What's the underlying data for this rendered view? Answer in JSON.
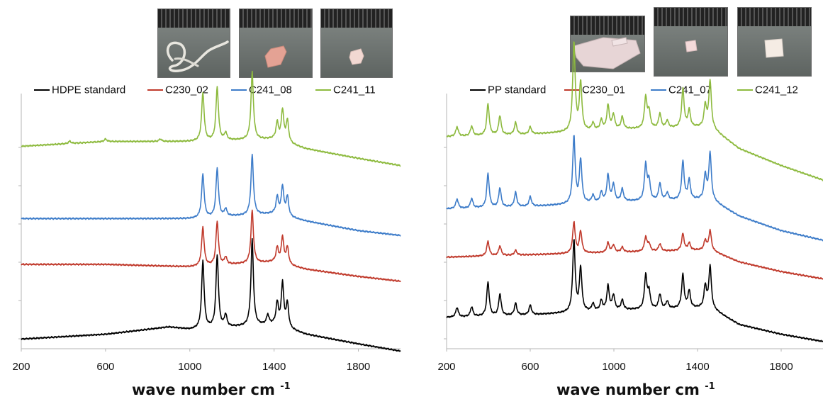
{
  "chart_data": [
    {
      "type": "line",
      "panel": "left",
      "xlabel": "wave number cm",
      "xlabel_sup": "-1",
      "xlim": [
        200,
        2000
      ],
      "xticks": [
        "200",
        "600",
        "1000",
        "1400",
        "1800"
      ],
      "xtick_values": [
        200,
        600,
        1000,
        1400,
        1800
      ],
      "ylabel": "",
      "grid": false,
      "legend_position": "top",
      "series": [
        {
          "name": "HDPE standard",
          "color": "#000000",
          "baseline": [
            [
              200,
              0.04
            ],
            [
              600,
              0.06
            ],
            [
              900,
              0.09
            ],
            [
              1000,
              0.08
            ],
            [
              1400,
              0.1
            ],
            [
              1550,
              0.06
            ],
            [
              1800,
              0.02
            ],
            [
              2000,
              -0.01
            ]
          ],
          "peaks": [
            [
              1062,
              0.28
            ],
            [
              1130,
              0.3
            ],
            [
              1170,
              0.05
            ],
            [
              1296,
              0.36
            ],
            [
              1370,
              0.04
            ],
            [
              1415,
              0.09
            ],
            [
              1440,
              0.18
            ],
            [
              1463,
              0.1
            ]
          ]
        },
        {
          "name": "C230_02",
          "color": "#c0392b",
          "baseline": [
            [
              200,
              0.35
            ],
            [
              600,
              0.35
            ],
            [
              1000,
              0.34
            ],
            [
              1400,
              0.36
            ],
            [
              1550,
              0.33
            ],
            [
              1800,
              0.3
            ],
            [
              2000,
              0.28
            ]
          ],
          "peaks": [
            [
              1062,
              0.16
            ],
            [
              1130,
              0.18
            ],
            [
              1170,
              0.03
            ],
            [
              1296,
              0.22
            ],
            [
              1415,
              0.06
            ],
            [
              1440,
              0.11
            ],
            [
              1463,
              0.07
            ]
          ]
        },
        {
          "name": "C241_08",
          "color": "#3d7cc9",
          "baseline": [
            [
              200,
              0.54
            ],
            [
              600,
              0.54
            ],
            [
              1000,
              0.54
            ],
            [
              1400,
              0.56
            ],
            [
              1550,
              0.53
            ],
            [
              1800,
              0.49
            ],
            [
              2000,
              0.47
            ]
          ],
          "peaks": [
            [
              1062,
              0.18
            ],
            [
              1130,
              0.2
            ],
            [
              1170,
              0.03
            ],
            [
              1296,
              0.25
            ],
            [
              1415,
              0.07
            ],
            [
              1440,
              0.12
            ],
            [
              1463,
              0.08
            ]
          ]
        },
        {
          "name": "C241_11",
          "color": "#8dba3e",
          "baseline": [
            [
              200,
              0.84
            ],
            [
              400,
              0.85
            ],
            [
              600,
              0.86
            ],
            [
              1000,
              0.86
            ],
            [
              1400,
              0.87
            ],
            [
              1550,
              0.83
            ],
            [
              1800,
              0.79
            ],
            [
              2000,
              0.76
            ]
          ],
          "peaks": [
            [
              430,
              0.01
            ],
            [
              600,
              0.01
            ],
            [
              860,
              0.01
            ],
            [
              1062,
              0.2
            ],
            [
              1130,
              0.22
            ],
            [
              1170,
              0.03
            ],
            [
              1296,
              0.28
            ],
            [
              1415,
              0.07
            ],
            [
              1440,
              0.13
            ],
            [
              1463,
              0.09
            ]
          ]
        }
      ]
    },
    {
      "type": "line",
      "panel": "right",
      "xlabel": "wave number cm",
      "xlabel_sup": "-1",
      "xlim": [
        200,
        2000
      ],
      "xticks": [
        "200",
        "600",
        "1000",
        "1400",
        "1800"
      ],
      "xtick_values": [
        200,
        600,
        1000,
        1400,
        1800
      ],
      "ylabel": "",
      "grid": false,
      "legend_position": "top",
      "series": [
        {
          "name": "PP standard",
          "color": "#000000",
          "baseline": [
            [
              200,
              0.13
            ],
            [
              600,
              0.14
            ],
            [
              1000,
              0.16
            ],
            [
              1460,
              0.17
            ],
            [
              1600,
              0.1
            ],
            [
              1800,
              0.06
            ],
            [
              2000,
              0.03
            ]
          ],
          "peaks": [
            [
              250,
              0.04
            ],
            [
              320,
              0.04
            ],
            [
              398,
              0.14
            ],
            [
              455,
              0.09
            ],
            [
              530,
              0.05
            ],
            [
              600,
              0.04
            ],
            [
              809,
              0.3
            ],
            [
              841,
              0.18
            ],
            [
              900,
              0.03
            ],
            [
              940,
              0.04
            ],
            [
              972,
              0.1
            ],
            [
              998,
              0.06
            ],
            [
              1040,
              0.04
            ],
            [
              1152,
              0.14
            ],
            [
              1168,
              0.07
            ],
            [
              1220,
              0.06
            ],
            [
              1255,
              0.03
            ],
            [
              1330,
              0.14
            ],
            [
              1360,
              0.07
            ],
            [
              1437,
              0.09
            ],
            [
              1460,
              0.17
            ]
          ]
        },
        {
          "name": "C230_01",
          "color": "#c0392b",
          "baseline": [
            [
              200,
              0.38
            ],
            [
              600,
              0.39
            ],
            [
              1000,
              0.4
            ],
            [
              1460,
              0.41
            ],
            [
              1600,
              0.36
            ],
            [
              1800,
              0.32
            ],
            [
              2000,
              0.29
            ]
          ],
          "peaks": [
            [
              398,
              0.06
            ],
            [
              455,
              0.04
            ],
            [
              530,
              0.02
            ],
            [
              809,
              0.13
            ],
            [
              841,
              0.09
            ],
            [
              972,
              0.04
            ],
            [
              998,
              0.03
            ],
            [
              1040,
              0.02
            ],
            [
              1152,
              0.06
            ],
            [
              1168,
              0.03
            ],
            [
              1220,
              0.03
            ],
            [
              1330,
              0.07
            ],
            [
              1360,
              0.03
            ],
            [
              1437,
              0.04
            ],
            [
              1460,
              0.08
            ]
          ]
        },
        {
          "name": "C241_07",
          "color": "#3d7cc9",
          "baseline": [
            [
              200,
              0.58
            ],
            [
              600,
              0.59
            ],
            [
              808,
              0.6
            ],
            [
              1000,
              0.61
            ],
            [
              1460,
              0.62
            ],
            [
              1600,
              0.55
            ],
            [
              1800,
              0.49
            ],
            [
              2000,
              0.45
            ]
          ],
          "peaks": [
            [
              250,
              0.04
            ],
            [
              320,
              0.04
            ],
            [
              398,
              0.14
            ],
            [
              455,
              0.08
            ],
            [
              530,
              0.06
            ],
            [
              600,
              0.04
            ],
            [
              809,
              0.28
            ],
            [
              841,
              0.18
            ],
            [
              900,
              0.03
            ],
            [
              940,
              0.04
            ],
            [
              972,
              0.11
            ],
            [
              998,
              0.07
            ],
            [
              1040,
              0.05
            ],
            [
              1152,
              0.15
            ],
            [
              1168,
              0.08
            ],
            [
              1220,
              0.07
            ],
            [
              1255,
              0.03
            ],
            [
              1330,
              0.16
            ],
            [
              1360,
              0.08
            ],
            [
              1437,
              0.1
            ],
            [
              1460,
              0.19
            ]
          ]
        },
        {
          "name": "C241_12",
          "color": "#8dba3e",
          "baseline": [
            [
              200,
              0.88
            ],
            [
              600,
              0.89
            ],
            [
              808,
              0.9
            ],
            [
              1000,
              0.91
            ],
            [
              1460,
              0.92
            ],
            [
              1600,
              0.83
            ],
            [
              1800,
              0.76
            ],
            [
              2000,
              0.7
            ]
          ],
          "peaks": [
            [
              250,
              0.04
            ],
            [
              320,
              0.04
            ],
            [
              398,
              0.13
            ],
            [
              455,
              0.08
            ],
            [
              530,
              0.05
            ],
            [
              600,
              0.03
            ],
            [
              809,
              0.37
            ],
            [
              841,
              0.2
            ],
            [
              900,
              0.03
            ],
            [
              940,
              0.04
            ],
            [
              972,
              0.1
            ],
            [
              998,
              0.06
            ],
            [
              1040,
              0.05
            ],
            [
              1152,
              0.13
            ],
            [
              1168,
              0.07
            ],
            [
              1220,
              0.06
            ],
            [
              1255,
              0.03
            ],
            [
              1330,
              0.16
            ],
            [
              1360,
              0.07
            ],
            [
              1437,
              0.09
            ],
            [
              1460,
              0.19
            ]
          ]
        }
      ]
    }
  ],
  "photos": {
    "left": [
      {
        "sample": "thread",
        "color": "#e8e6df"
      },
      {
        "sample": "flake",
        "color": "#e4a294"
      },
      {
        "sample": "flake",
        "color": "#f2d8d2"
      }
    ],
    "right": [
      {
        "sample": "sheet",
        "color": "#e7d5d6"
      },
      {
        "sample": "flake",
        "color": "#f4dada"
      },
      {
        "sample": "flake",
        "color": "#f5ece4"
      }
    ]
  }
}
